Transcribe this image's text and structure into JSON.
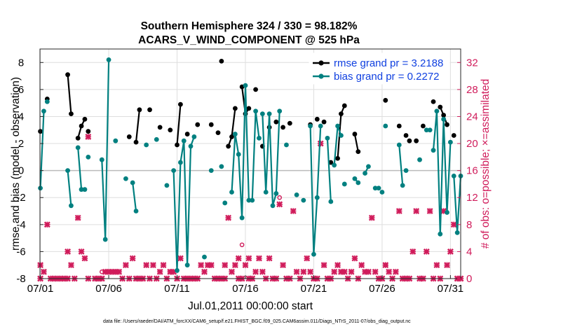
{
  "chart_data": {
    "type": "line",
    "title_line1": "Southern Hemisphere 324 / 330 = 98.182%",
    "title_line2": "ACARS_V_WIND_COMPONENT @ 525 hPa",
    "ylabel": "rmse and bias (model - observation)",
    "ylabel_right": "# of obs: o=possible; ×=assimilated",
    "xlabel": "Jul.01,2011 00:00:00 start",
    "footnote": "data file: /Users/raeder/DAI/ATM_forcXX/CAM6_setup/f.e21.FHIST_BGC.f09_025.CAM6assim.011/Diags_NTrS_2011-07/obs_diag_output.nc",
    "ylim": [
      -8,
      9
    ],
    "ylim_right": [
      0,
      34
    ],
    "xlim": [
      0.97,
      31.75
    ],
    "yticks": [
      "-8",
      "-6",
      "-4",
      "-2",
      "0",
      "2",
      "4",
      "6",
      "8"
    ],
    "yticks_right": [
      "0",
      "4",
      "8",
      "12",
      "16",
      "20",
      "24",
      "28",
      "32"
    ],
    "xticks": [
      "07/01",
      "07/06",
      "07/11",
      "07/16",
      "07/21",
      "07/26",
      "07/31"
    ],
    "legend_position": "top-right",
    "colors": {
      "rmse": "#000000",
      "bias": "#008080",
      "obs": "#d01c5b",
      "zero": "#bbbbbb"
    },
    "series": [
      {
        "name": "rmse grand pr = 3.2188",
        "segments": [
          [
            [
              1.0,
              2.9
            ]
          ],
          [
            [
              1.5,
              5.3
            ]
          ],
          [
            [
              3.0,
              7.1
            ],
            [
              3.25,
              4.2
            ]
          ],
          [
            [
              3.75,
              2.4
            ],
            [
              4.0,
              3.3
            ],
            [
              4.25,
              3.8
            ]
          ],
          [
            [
              4.5,
              2.9
            ]
          ],
          [
            [
              7.5,
              2.5
            ]
          ],
          [
            [
              8.0,
              2.1
            ],
            [
              8.25,
              4.5
            ]
          ],
          [
            [
              9.0,
              4.5
            ]
          ],
          [
            [
              9.75,
              3.2
            ]
          ],
          [
            [
              10.5,
              3.0
            ]
          ],
          [
            [
              11.0,
              1.9
            ],
            [
              11.25,
              4.9
            ]
          ],
          [
            [
              11.75,
              2.7
            ]
          ],
          [
            [
              12.5,
              3.4
            ]
          ],
          [
            [
              13.5,
              3.4
            ]
          ],
          [
            [
              14.0,
              2.8
            ]
          ],
          [
            [
              14.25,
              8.1
            ]
          ],
          [
            [
              14.75,
              1.8
            ],
            [
              15.0,
              2.5
            ],
            [
              15.25,
              4.6
            ]
          ],
          [
            [
              15.75,
              6.2
            ],
            [
              16.0,
              4.2
            ],
            [
              16.25,
              4.6
            ]
          ],
          [
            [
              16.75,
              6.0
            ]
          ],
          [
            [
              17.25,
              1.8
            ]
          ],
          [
            [
              17.75,
              3.2
            ]
          ],
          [
            [
              18.25,
              3.6
            ]
          ],
          [
            [
              18.75,
              3.2
            ]
          ],
          [
            [
              19.25,
              3.5
            ]
          ],
          [
            [
              20.75,
              3.4
            ]
          ],
          [
            [
              21.25,
              3.8
            ]
          ],
          [
            [
              21.75,
              3.6
            ]
          ],
          [
            [
              22.25,
              0.6
            ]
          ],
          [
            [
              22.75,
              0.9
            ],
            [
              23.0,
              4.2
            ],
            [
              23.25,
              4.8
            ]
          ],
          [
            [
              24.0,
              2.7
            ],
            [
              24.25,
              1.4
            ]
          ],
          [
            [
              26.25,
              5.2
            ]
          ],
          [
            [
              27.25,
              3.3
            ]
          ],
          [
            [
              27.75,
              2.6
            ]
          ],
          [
            [
              28.0,
              2.2
            ]
          ],
          [
            [
              28.5,
              2.2
            ]
          ],
          [
            [
              29.0,
              3.3
            ]
          ],
          [
            [
              29.75,
              5.1
            ]
          ],
          [
            [
              30.25,
              4.7
            ],
            [
              30.5,
              4.1
            ],
            [
              30.75,
              3.4
            ]
          ],
          [
            [
              31.25,
              2.6
            ]
          ]
        ]
      },
      {
        "name": "bias grand pr = 0.2272",
        "segments": [
          [
            [
              1.0,
              -1.3
            ],
            [
              1.25,
              4.4
            ]
          ],
          [
            [
              1.5,
              5.1
            ]
          ],
          [
            [
              3.0,
              0.0
            ],
            [
              3.25,
              -2.6
            ]
          ],
          [
            [
              3.75,
              1.7
            ],
            [
              4.0,
              -1.4
            ],
            [
              4.25,
              -1.4
            ]
          ],
          [
            [
              4.5,
              1.0
            ]
          ],
          [
            [
              5.5,
              0.8
            ],
            [
              5.75,
              -5.1
            ],
            [
              6.0,
              8.2
            ]
          ],
          [
            [
              6.5,
              2.2
            ]
          ],
          [
            [
              7.25,
              -0.6
            ]
          ],
          [
            [
              7.75,
              -0.9
            ],
            [
              8.0,
              -3.0
            ]
          ],
          [
            [
              8.75,
              1.9
            ]
          ],
          [
            [
              9.5,
              2.3
            ]
          ],
          [
            [
              10.25,
              -1.1
            ]
          ],
          [
            [
              10.75,
              0.0
            ],
            [
              11.0,
              -7.4
            ],
            [
              11.25,
              0.6
            ],
            [
              11.5,
              2.2
            ],
            [
              11.75,
              -7.0
            ],
            [
              12.0,
              1.8
            ],
            [
              12.25,
              2.5
            ]
          ],
          [
            [
              13.0,
              -6.4
            ]
          ],
          [
            [
              13.5,
              0.0
            ]
          ],
          [
            [
              14.25,
              0.3
            ]
          ],
          [
            [
              14.5,
              -2.4
            ]
          ],
          [
            [
              15.0,
              -1.6
            ],
            [
              15.25,
              2.7
            ],
            [
              15.5,
              1.2
            ],
            [
              15.75,
              -3.5
            ],
            [
              16.0,
              6.3
            ],
            [
              16.25,
              -2.2
            ],
            [
              16.5,
              -2.2
            ],
            [
              16.75,
              4.4
            ],
            [
              17.0,
              2.4
            ]
          ],
          [
            [
              17.25,
              4.2
            ],
            [
              17.5,
              -1.6
            ],
            [
              17.75,
              4.2
            ],
            [
              18.0,
              -2.6
            ],
            [
              18.25,
              -1.7
            ],
            [
              18.5,
              4.4
            ]
          ],
          [
            [
              19.0,
              1.9
            ]
          ],
          [
            [
              19.75,
              -1.8
            ]
          ],
          [
            [
              20.25,
              -2.2
            ]
          ],
          [
            [
              20.75,
              3.3
            ],
            [
              21.0,
              -6.2
            ],
            [
              21.25,
              -2.0
            ],
            [
              21.5,
              3.3
            ]
          ],
          [
            [
              22.0,
              2.4
            ],
            [
              22.25,
              -2.3
            ]
          ],
          [
            [
              22.5,
              0.4
            ],
            [
              22.75,
              3.3
            ],
            [
              23.0,
              2.6
            ]
          ],
          [
            [
              23.25,
              -1.0
            ]
          ],
          [
            [
              24.0,
              -0.6
            ],
            [
              24.25,
              -0.9
            ]
          ],
          [
            [
              24.75,
              -0.2
            ],
            [
              25.0,
              0.3
            ]
          ],
          [
            [
              25.5,
              -1.3
            ]
          ],
          [
            [
              25.75,
              -1.3
            ]
          ],
          [
            [
              26.0,
              -1.6
            ]
          ],
          [
            [
              26.25,
              3.3
            ]
          ],
          [
            [
              27.25,
              1.9
            ],
            [
              27.5,
              -1.1
            ]
          ],
          [
            [
              27.75,
              0.0
            ]
          ],
          [
            [
              28.75,
              0.8
            ]
          ],
          [
            [
              29.25,
              3.0
            ],
            [
              29.5,
              3.0
            ]
          ],
          [
            [
              29.75,
              1.5
            ],
            [
              30.0,
              4.4
            ],
            [
              30.25,
              -4.7
            ],
            [
              30.5,
              3.8
            ],
            [
              30.75,
              -3.1
            ],
            [
              31.0,
              2.1
            ]
          ],
          [
            [
              31.25,
              -0.4
            ],
            [
              31.5,
              -4.6
            ],
            [
              31.75,
              -0.4
            ]
          ]
        ]
      }
    ],
    "obs_assimilated": [
      [
        1.0,
        2
      ],
      [
        1.0,
        0
      ],
      [
        1.25,
        1
      ],
      [
        1.5,
        8
      ],
      [
        1.75,
        0
      ],
      [
        2.0,
        0
      ],
      [
        2.25,
        0
      ],
      [
        2.5,
        0
      ],
      [
        2.75,
        0
      ],
      [
        3.0,
        4
      ],
      [
        3.0,
        0
      ],
      [
        3.25,
        2
      ],
      [
        3.5,
        0
      ],
      [
        3.75,
        9
      ],
      [
        4.0,
        4
      ],
      [
        4.25,
        3
      ],
      [
        4.5,
        0
      ],
      [
        4.5,
        21
      ],
      [
        5.0,
        0
      ],
      [
        5.25,
        0
      ],
      [
        5.5,
        0
      ],
      [
        5.75,
        1
      ],
      [
        6.0,
        1
      ],
      [
        6.25,
        1
      ],
      [
        6.5,
        1
      ],
      [
        6.75,
        1
      ],
      [
        7.0,
        0
      ],
      [
        7.25,
        2
      ],
      [
        7.5,
        0
      ],
      [
        7.75,
        3
      ],
      [
        8.0,
        0
      ],
      [
        8.25,
        0
      ],
      [
        8.5,
        0
      ],
      [
        8.75,
        2
      ],
      [
        9.0,
        0
      ],
      [
        9.25,
        2
      ],
      [
        9.5,
        0
      ],
      [
        9.75,
        1
      ],
      [
        10.0,
        2
      ],
      [
        10.25,
        0
      ],
      [
        10.5,
        1
      ],
      [
        10.75,
        1
      ],
      [
        11.0,
        0
      ],
      [
        11.25,
        3
      ],
      [
        11.5,
        0
      ],
      [
        11.75,
        0
      ],
      [
        12.0,
        0
      ],
      [
        12.25,
        0
      ],
      [
        12.5,
        0
      ],
      [
        12.75,
        2
      ],
      [
        13.0,
        1
      ],
      [
        13.25,
        2
      ],
      [
        13.5,
        2
      ],
      [
        13.75,
        0
      ],
      [
        14.0,
        0
      ],
      [
        14.25,
        0
      ],
      [
        14.5,
        0
      ],
      [
        14.5,
        2
      ],
      [
        14.75,
        9
      ],
      [
        15.0,
        1
      ],
      [
        15.25,
        2
      ],
      [
        15.5,
        3
      ],
      [
        15.5,
        0
      ],
      [
        15.75,
        0
      ],
      [
        16.0,
        2
      ],
      [
        16.25,
        3
      ],
      [
        16.25,
        0
      ],
      [
        16.5,
        0
      ],
      [
        16.75,
        1
      ],
      [
        17.0,
        3
      ],
      [
        17.25,
        1
      ],
      [
        17.5,
        0
      ],
      [
        17.75,
        3
      ],
      [
        18.0,
        0
      ],
      [
        18.25,
        0
      ],
      [
        18.5,
        11
      ],
      [
        18.75,
        2
      ],
      [
        19.0,
        0
      ],
      [
        19.25,
        0
      ],
      [
        19.5,
        10
      ],
      [
        19.75,
        1
      ],
      [
        20.0,
        0
      ],
      [
        20.25,
        1
      ],
      [
        20.5,
        3
      ],
      [
        20.75,
        1
      ],
      [
        21.0,
        0
      ],
      [
        21.25,
        0
      ],
      [
        21.5,
        20
      ],
      [
        21.75,
        2
      ],
      [
        22.0,
        0
      ],
      [
        22.25,
        0
      ],
      [
        22.5,
        1
      ],
      [
        22.75,
        2
      ],
      [
        23.0,
        1
      ],
      [
        23.25,
        1
      ],
      [
        23.5,
        0
      ],
      [
        23.75,
        1
      ],
      [
        24.0,
        3
      ],
      [
        24.25,
        0
      ],
      [
        24.5,
        2
      ],
      [
        24.75,
        1
      ],
      [
        25.0,
        1
      ],
      [
        25.25,
        9
      ],
      [
        25.5,
        1
      ],
      [
        25.75,
        0
      ],
      [
        26.0,
        0
      ],
      [
        26.25,
        2
      ],
      [
        26.5,
        1
      ],
      [
        26.75,
        0
      ],
      [
        27.0,
        1
      ],
      [
        27.25,
        10
      ],
      [
        27.5,
        0
      ],
      [
        27.75,
        0
      ],
      [
        28.0,
        0
      ],
      [
        28.25,
        4
      ],
      [
        28.5,
        10
      ],
      [
        28.75,
        0
      ],
      [
        29.0,
        0
      ],
      [
        29.25,
        4
      ],
      [
        29.5,
        10
      ],
      [
        29.75,
        0
      ],
      [
        30.0,
        2
      ],
      [
        30.25,
        0
      ],
      [
        30.5,
        10
      ],
      [
        30.75,
        2
      ],
      [
        31.0,
        4
      ],
      [
        31.25,
        8
      ],
      [
        31.5,
        0
      ],
      [
        31.75,
        0
      ]
    ],
    "obs_possible_only": [
      [
        5.5,
        1
      ],
      [
        10.5,
        1
      ],
      [
        15.75,
        5
      ],
      [
        18.5,
        12
      ],
      [
        26.25,
        2
      ]
    ]
  }
}
